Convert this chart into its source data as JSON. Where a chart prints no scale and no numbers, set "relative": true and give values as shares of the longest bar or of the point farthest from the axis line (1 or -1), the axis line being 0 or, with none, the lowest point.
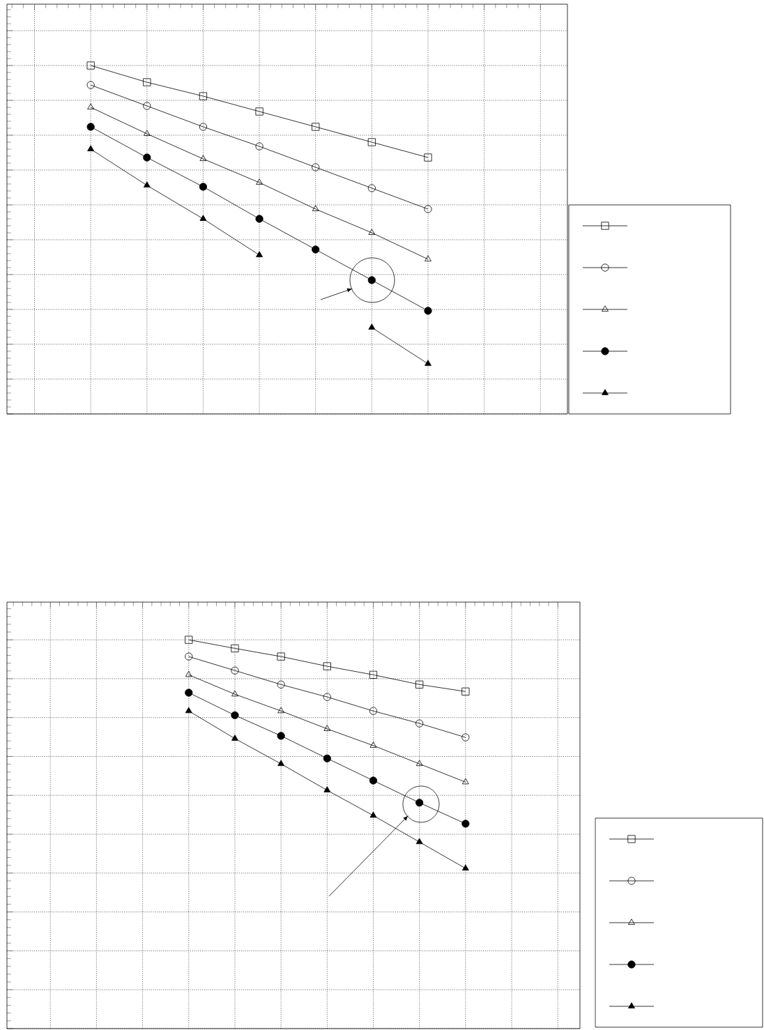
{
  "chart_data": [
    {
      "type": "line",
      "relative": true,
      "categories": [
        null,
        null,
        null,
        null,
        null,
        null,
        null
      ],
      "grid": true,
      "tick_labels": false,
      "series": [
        {
          "color": "#000000",
          "marker": "square",
          "values": [
            1,
            0.952,
            0.912,
            0.868,
            0.824,
            0.78,
            0.736
          ]
        },
        {
          "color": "#000000",
          "marker": "circle",
          "values": [
            0.944,
            0.884,
            0.824,
            0.768,
            0.708,
            0.648,
            0.588
          ]
        },
        {
          "color": "#000000",
          "marker": "triangle",
          "values": [
            0.88,
            0.804,
            0.732,
            0.664,
            0.588,
            0.52,
            0.444
          ]
        },
        {
          "color": "#000000",
          "marker": "circle",
          "values": [
            0.824,
            0.736,
            0.652,
            0.56,
            0.472,
            0.384,
            0.296
          ]
        },
        {
          "color": "#000000",
          "marker": "triangle",
          "values": [
            0.76,
            0.656,
            0.56,
            0.456,
            null,
            0.248,
            0.144
          ]
        }
      ]
    },
    {
      "type": "line",
      "relative": true,
      "categories": [
        null,
        null,
        null,
        null,
        null,
        null,
        null
      ],
      "grid": true,
      "tick_labels": false,
      "series": [
        {
          "color": "#000000",
          "marker": "square",
          "values": [
            1,
            0.978,
            0.957,
            0.932,
            0.91,
            0.885,
            0.867
          ]
        },
        {
          "color": "#000000",
          "marker": "circle",
          "values": [
            0.957,
            0.921,
            0.885,
            0.853,
            0.817,
            0.785,
            0.749
          ]
        },
        {
          "color": "#000000",
          "marker": "triangle",
          "values": [
            0.91,
            0.86,
            0.817,
            0.771,
            0.728,
            0.681,
            0.634
          ]
        },
        {
          "color": "#000000",
          "marker": "circle",
          "values": [
            0.864,
            0.806,
            0.753,
            0.695,
            0.638,
            0.581,
            0.527
          ]
        },
        {
          "color": "#000000",
          "marker": "triangle",
          "values": [
            0.817,
            0.746,
            0.681,
            0.613,
            0.548,
            0.48,
            0.412
          ]
        }
      ]
    }
  ]
}
